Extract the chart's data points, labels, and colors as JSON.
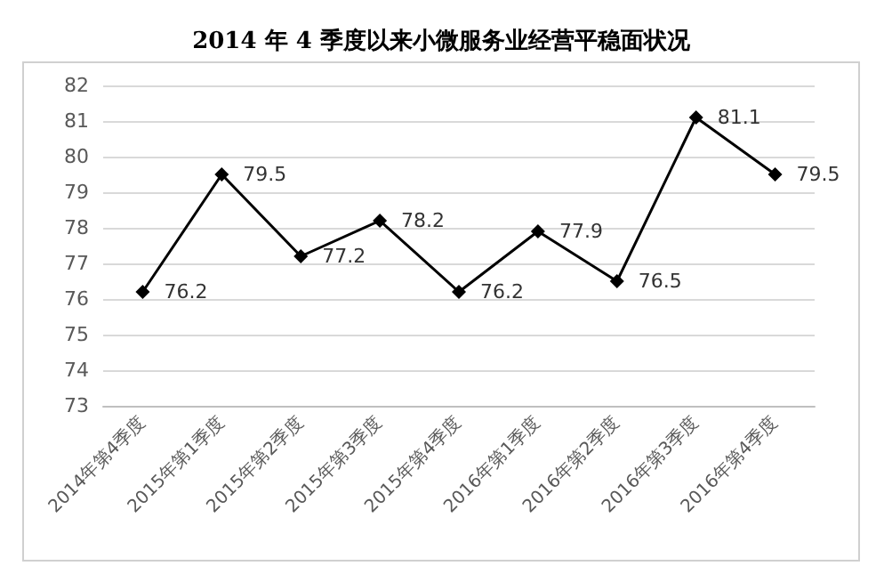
{
  "chart_data": {
    "type": "line",
    "title": "2014 年 4 季度以来小微服务业经营平稳面状况",
    "categories": [
      "2014年第4季度",
      "2015年第1季度",
      "2015年第2季度",
      "2015年第3季度",
      "2015年第4季度",
      "2016年第1季度",
      "2016年第2季度",
      "2016年第3季度",
      "2016年第4季度"
    ],
    "series": [
      {
        "color": "#000000",
        "values": [
          76.2,
          79.5,
          77.2,
          78.2,
          76.2,
          77.9,
          76.5,
          81.1,
          79.5
        ]
      }
    ],
    "ylim": [
      73,
      82
    ],
    "yticks": [
      73,
      74,
      75,
      76,
      77,
      78,
      79,
      80,
      81,
      82
    ],
    "grid": "y",
    "marker": "diamond",
    "line_style": "solid",
    "data_labels": true
  }
}
